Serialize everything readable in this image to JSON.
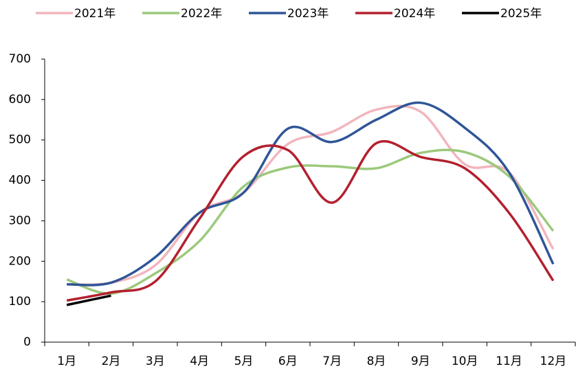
{
  "chart_data": {
    "type": "line",
    "categories": [
      "1月",
      "2月",
      "3月",
      "4月",
      "5月",
      "6月",
      "7月",
      "8月",
      "9月",
      "10月",
      "11月",
      "12月"
    ],
    "series": [
      {
        "name": "2021年",
        "color": "#f2b5bd",
        "values": [
          143,
          147,
          190,
          320,
          370,
          490,
          520,
          575,
          570,
          440,
          420,
          230
        ]
      },
      {
        "name": "2022年",
        "color": "#9cc97c",
        "values": [
          155,
          120,
          170,
          250,
          385,
          432,
          435,
          430,
          468,
          470,
          410,
          275
        ]
      },
      {
        "name": "2023年",
        "color": "#2f5597",
        "values": [
          143,
          147,
          210,
          320,
          370,
          528,
          495,
          550,
          592,
          530,
          420,
          193
        ]
      },
      {
        "name": "2024年",
        "color": "#b3202e",
        "values": [
          103,
          123,
          150,
          305,
          460,
          475,
          345,
          492,
          458,
          430,
          320,
          152
        ]
      },
      {
        "name": "2025年",
        "color": "#000000",
        "values": [
          92,
          115,
          null,
          null,
          null,
          null,
          null,
          null,
          null,
          null,
          null,
          null
        ]
      }
    ],
    "ylim": [
      0,
      700
    ],
    "yticks": [
      0,
      100,
      200,
      300,
      400,
      500,
      600,
      700
    ],
    "legend": "top"
  }
}
